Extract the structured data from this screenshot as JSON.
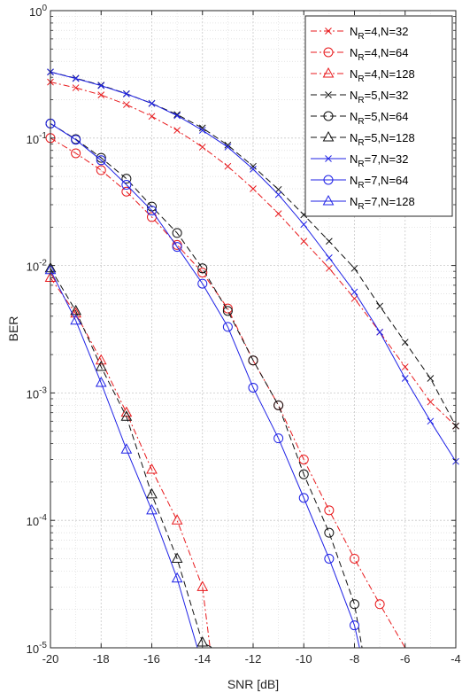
{
  "chart_data": {
    "type": "line",
    "xlabel": "SNR [dB]",
    "ylabel": "BER",
    "xlim": [
      -20,
      -4
    ],
    "ylim": [
      1e-05,
      1
    ],
    "yscale": "log",
    "grid": true,
    "legend_position": "top-right",
    "x_ticks": [
      -20,
      -18,
      -16,
      -14,
      -12,
      -10,
      -8,
      -6,
      -4
    ],
    "x_tick_labels": [
      "-20",
      "-18",
      "-16",
      "-14",
      "-12",
      "-10",
      "-8",
      "-6",
      "-4"
    ],
    "y_tick_labels": [
      {
        "value": 1,
        "base": "10",
        "exp": "0"
      },
      {
        "value": 0.1,
        "base": "10",
        "exp": "-1"
      },
      {
        "value": 0.01,
        "base": "10",
        "exp": "-2"
      },
      {
        "value": 0.001,
        "base": "10",
        "exp": "-3"
      },
      {
        "value": 0.0001,
        "base": "10",
        "exp": "-4"
      },
      {
        "value": 1e-05,
        "base": "10",
        "exp": "-5"
      }
    ],
    "series": [
      {
        "name_main": "N",
        "name_sub": "R",
        "name_rest": "=4,N=32",
        "color": "#e8191c",
        "dash": "dashdot",
        "marker": "x",
        "x": [
          -20,
          -19,
          -18,
          -17,
          -16,
          -15,
          -14,
          -13,
          -12,
          -11,
          -10,
          -9,
          -8,
          -7,
          -6,
          -5,
          -4
        ],
        "y": [
          0.275,
          0.248,
          0.218,
          0.183,
          0.148,
          0.115,
          0.085,
          0.06,
          0.04,
          0.0255,
          0.0155,
          0.0095,
          0.0055,
          0.003,
          0.0016,
          0.00085,
          0.00055
        ]
      },
      {
        "name_main": "N",
        "name_sub": "R",
        "name_rest": "=4,N=64",
        "color": "#e8191c",
        "dash": "dashdot",
        "marker": "circle",
        "x": [
          -20,
          -19,
          -18,
          -17,
          -16,
          -15,
          -14,
          -13,
          -12,
          -11,
          -10,
          -9,
          -8,
          -7,
          -6
        ],
        "y": [
          0.1,
          0.076,
          0.056,
          0.038,
          0.024,
          0.0145,
          0.0088,
          0.0046,
          0.0018,
          0.0008,
          0.0003,
          0.00012,
          5e-05,
          2.2e-05,
          1e-05
        ]
      },
      {
        "name_main": "N",
        "name_sub": "R",
        "name_rest": "=4,N=128",
        "color": "#e8191c",
        "dash": "dashdot",
        "marker": "triangle",
        "x": [
          -20,
          -19,
          -18,
          -17,
          -16,
          -15,
          -14,
          -13.7
        ],
        "y": [
          0.008,
          0.0042,
          0.0018,
          0.0007,
          0.00025,
          0.0001,
          3e-05,
          1e-05
        ]
      },
      {
        "name_main": "N",
        "name_sub": "R",
        "name_rest": "=5,N=32",
        "color": "#111111",
        "dash": "longdash",
        "marker": "x",
        "x": [
          -20,
          -19,
          -18,
          -17,
          -16,
          -15,
          -14,
          -13,
          -12,
          -11,
          -10,
          -9,
          -8,
          -7,
          -6,
          -5,
          -4
        ],
        "y": [
          0.33,
          0.295,
          0.26,
          0.223,
          0.187,
          0.153,
          0.12,
          0.088,
          0.06,
          0.0395,
          0.025,
          0.0155,
          0.0095,
          0.0048,
          0.0025,
          0.0013,
          0.00055
        ]
      },
      {
        "name_main": "N",
        "name_sub": "R",
        "name_rest": "=5,N=64",
        "color": "#111111",
        "dash": "longdash",
        "marker": "circle",
        "x": [
          -20,
          -19,
          -18,
          -17,
          -16,
          -15,
          -14,
          -13,
          -12,
          -11,
          -10,
          -9,
          -8,
          -7.7
        ],
        "y": [
          0.13,
          0.098,
          0.07,
          0.048,
          0.029,
          0.018,
          0.0095,
          0.0044,
          0.0018,
          0.0008,
          0.00023,
          8e-05,
          2.2e-05,
          1e-05
        ]
      },
      {
        "name_main": "N",
        "name_sub": "R",
        "name_rest": "=5,N=128",
        "color": "#111111",
        "dash": "longdash",
        "marker": "triangle",
        "x": [
          -20,
          -19,
          -18,
          -17,
          -16,
          -15,
          -14,
          -13.6
        ],
        "y": [
          0.0095,
          0.0044,
          0.0016,
          0.00065,
          0.00016,
          5e-05,
          1.1e-05,
          1e-05
        ]
      },
      {
        "name_main": "N",
        "name_sub": "R",
        "name_rest": "=7,N=32",
        "color": "#1f22e6",
        "dash": "solid",
        "marker": "x",
        "x": [
          -20,
          -19,
          -18,
          -17,
          -16,
          -15,
          -14,
          -13,
          -12,
          -11,
          -10,
          -9,
          -8,
          -7,
          -6,
          -5,
          -4
        ],
        "y": [
          0.33,
          0.293,
          0.258,
          0.222,
          0.187,
          0.15,
          0.115,
          0.085,
          0.057,
          0.036,
          0.021,
          0.0115,
          0.0062,
          0.003,
          0.0013,
          0.0006,
          0.00029
        ]
      },
      {
        "name_main": "N",
        "name_sub": "R",
        "name_rest": "=7,N=64",
        "color": "#1f22e6",
        "dash": "solid",
        "marker": "circle",
        "x": [
          -20,
          -19,
          -18,
          -17,
          -16,
          -15,
          -14,
          -13,
          -12,
          -11,
          -10,
          -9,
          -8,
          -7.8
        ],
        "y": [
          0.13,
          0.097,
          0.067,
          0.043,
          0.027,
          0.014,
          0.0072,
          0.0033,
          0.0011,
          0.00044,
          0.00015,
          5e-05,
          1.5e-05,
          1e-05
        ]
      },
      {
        "name_main": "N",
        "name_sub": "R",
        "name_rest": "=7,N=128",
        "color": "#1f22e6",
        "dash": "solid",
        "marker": "triangle",
        "x": [
          -20,
          -19,
          -18,
          -17,
          -16,
          -15,
          -14.2
        ],
        "y": [
          0.0092,
          0.0037,
          0.0012,
          0.00036,
          0.00012,
          3.5e-05,
          1e-05
        ]
      }
    ]
  }
}
